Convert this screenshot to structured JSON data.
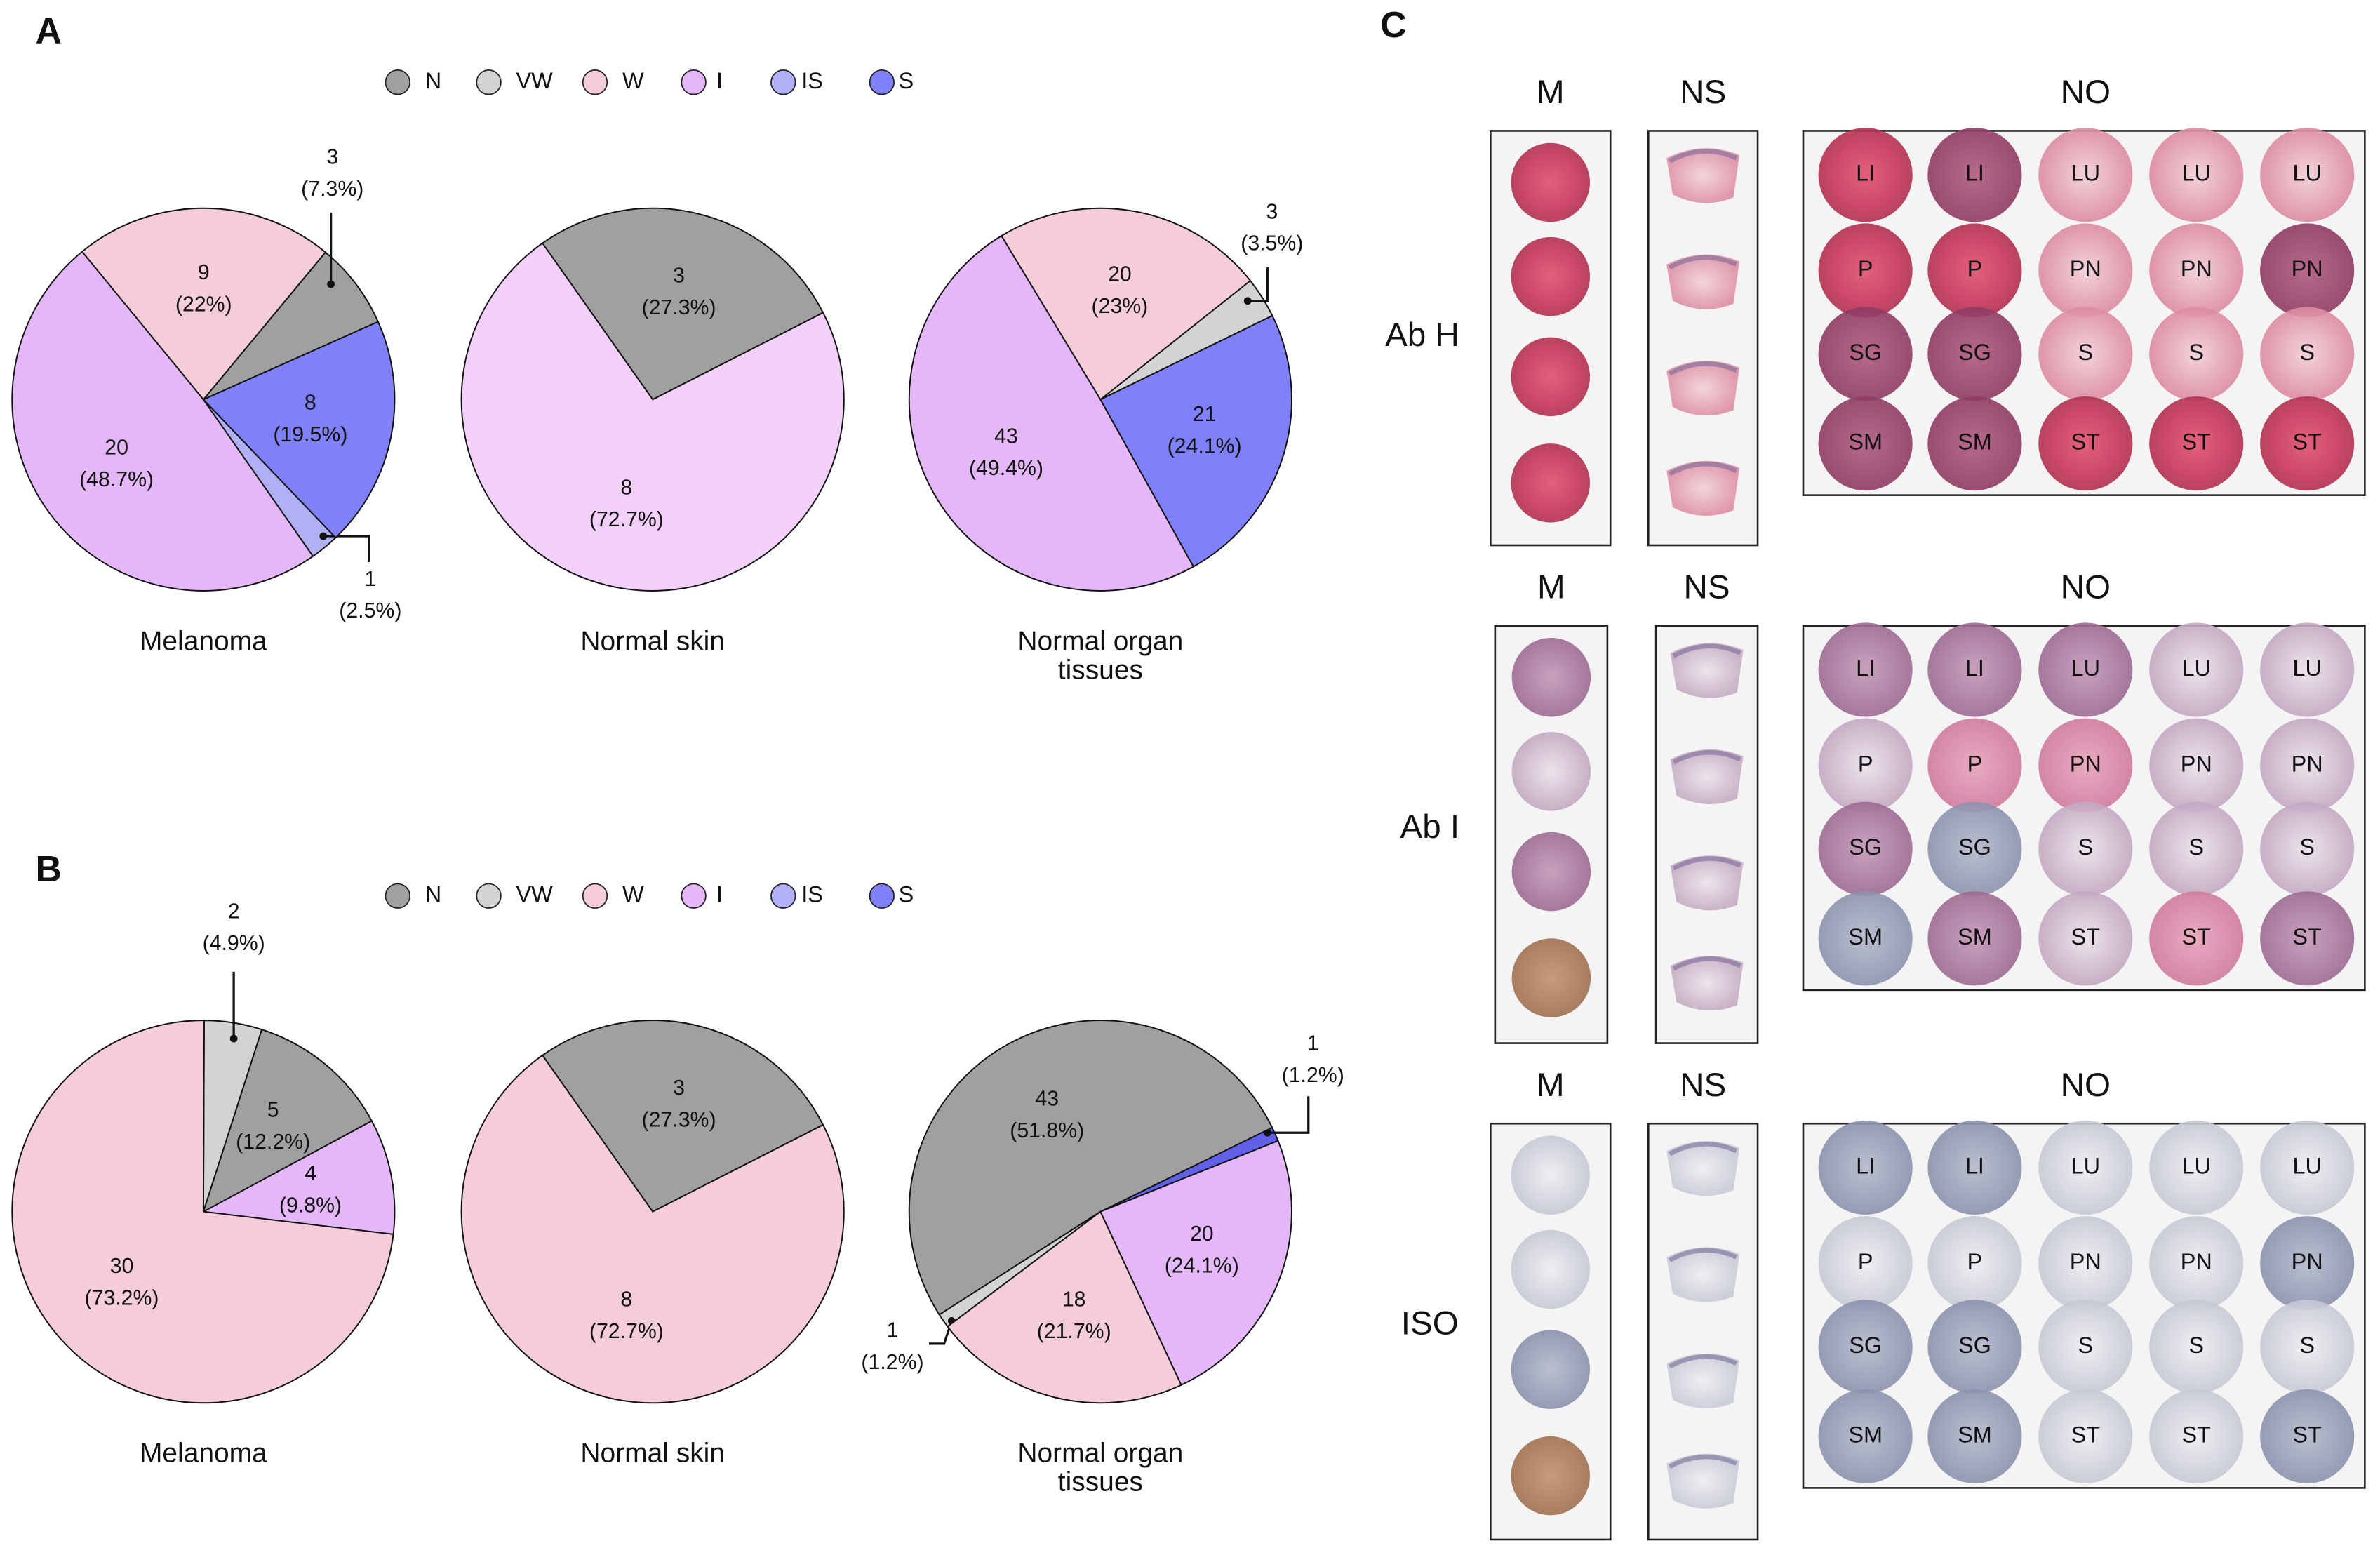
{
  "panels": [
    {
      "label": "A",
      "legend": [
        {
          "name": "N",
          "color": "#a0a0a0"
        },
        {
          "name": "VW",
          "color": "#d3d3d3"
        },
        {
          "name": "W",
          "color": "#f4cdd9"
        },
        {
          "name": "I",
          "color": "#e4b8f8"
        },
        {
          "name": "IS",
          "color": "#b0b0f4"
        },
        {
          "name": "S",
          "color": "#8080f8"
        }
      ]
    },
    {
      "label": "B",
      "legend": [
        {
          "name": "N",
          "color": "#a0a0a0"
        },
        {
          "name": "VW",
          "color": "#d3d3d3"
        },
        {
          "name": "W",
          "color": "#f4cdd9"
        },
        {
          "name": "I",
          "color": "#e4b8f8"
        },
        {
          "name": "IS",
          "color": "#b0b0f4"
        },
        {
          "name": "S",
          "color": "#8080f8"
        }
      ]
    }
  ],
  "chart_data": [
    {
      "type": "pie",
      "title": "Melanoma",
      "categories": [
        "N",
        "W",
        "I",
        "IS",
        "S"
      ],
      "values": [
        3,
        9,
        20,
        1,
        8
      ],
      "percent_labels": [
        "(7.3%)",
        "(22%)",
        "(48.7%)",
        "(2.5%)",
        "(19.5%)"
      ],
      "colors": [
        "#a0a0a0",
        "#f4cdd9",
        "#e4b8f8",
        "#b0b0f4",
        "#8080f8"
      ]
    },
    {
      "type": "pie",
      "title": "Normal skin",
      "categories": [
        "N",
        "I"
      ],
      "values": [
        3,
        8
      ],
      "percent_labels": [
        "(27.3%)",
        "(72.7%)"
      ],
      "colors": [
        "#a0a0a0",
        "#f2d0fa"
      ]
    },
    {
      "type": "pie",
      "title": "Normal organ tissues",
      "categories": [
        "VW",
        "W",
        "I",
        "S"
      ],
      "values": [
        3,
        20,
        43,
        21
      ],
      "percent_labels": [
        "(3.5%)",
        "(23%)",
        "(49.4%)",
        "(24.1%)"
      ],
      "colors": [
        "#d3d3d3",
        "#f4cdd9",
        "#e4b8f8",
        "#8080f8"
      ]
    },
    {
      "type": "pie",
      "title": "Melanoma",
      "categories": [
        "I",
        "N",
        "VW",
        "W"
      ],
      "values": [
        4,
        5,
        2,
        30
      ],
      "percent_labels": [
        "(9.8%)",
        "(12.2%)",
        "(4.9%)",
        "(73.2%)"
      ],
      "colors": [
        "#e4b8f8",
        "#a0a0a0",
        "#d3d3d3",
        "#f4cdd9"
      ]
    },
    {
      "type": "pie",
      "title": "Normal skin",
      "categories": [
        "N",
        "W"
      ],
      "values": [
        3,
        8
      ],
      "percent_labels": [
        "(27.3%)",
        "(72.7%)"
      ],
      "colors": [
        "#a0a0a0",
        "#f4cdd9"
      ]
    },
    {
      "type": "pie",
      "title": "Normal organ tissues",
      "categories": [
        "S",
        "N",
        "VW",
        "W",
        "I"
      ],
      "values": [
        1,
        43,
        1,
        18,
        20
      ],
      "percent_labels": [
        "(1.2%)",
        "(51.8%)",
        "(1.2%)",
        "(21.7%)",
        "(24.1%)"
      ],
      "colors": [
        "#6060e8",
        "#a0a0a0",
        "#d3d3d3",
        "#f4cdd9",
        "#e4b8f8"
      ]
    }
  ],
  "panel_c": {
    "label": "C",
    "blocks": [
      {
        "label": "Ab H",
        "headers": [
          "M",
          "NS",
          "NO"
        ],
        "no_labels": [
          [
            "LI",
            "LI",
            "LU",
            "LU",
            "LU"
          ],
          [
            "P",
            "P",
            "PN",
            "PN",
            "PN"
          ],
          [
            "SG",
            "SG",
            "S",
            "S",
            "S"
          ],
          [
            "SM",
            "SM",
            "ST",
            "ST",
            "ST"
          ]
        ]
      },
      {
        "label": "Ab I",
        "headers": [
          "M",
          "NS",
          "NO"
        ],
        "no_labels": [
          [
            "LI",
            "LI",
            "LU",
            "LU",
            "LU"
          ],
          [
            "P",
            "P",
            "PN",
            "PN",
            "PN"
          ],
          [
            "SG",
            "SG",
            "S",
            "S",
            "S"
          ],
          [
            "SM",
            "SM",
            "ST",
            "ST",
            "ST"
          ]
        ]
      },
      {
        "label": "ISO",
        "headers": [
          "M",
          "NS",
          "NO"
        ],
        "no_labels": [
          [
            "LI",
            "LI",
            "LU",
            "LU",
            "LU"
          ],
          [
            "P",
            "P",
            "PN",
            "PN",
            "PN"
          ],
          [
            "SG",
            "SG",
            "S",
            "S",
            "S"
          ],
          [
            "SM",
            "SM",
            "ST",
            "ST",
            "ST"
          ]
        ]
      }
    ]
  }
}
